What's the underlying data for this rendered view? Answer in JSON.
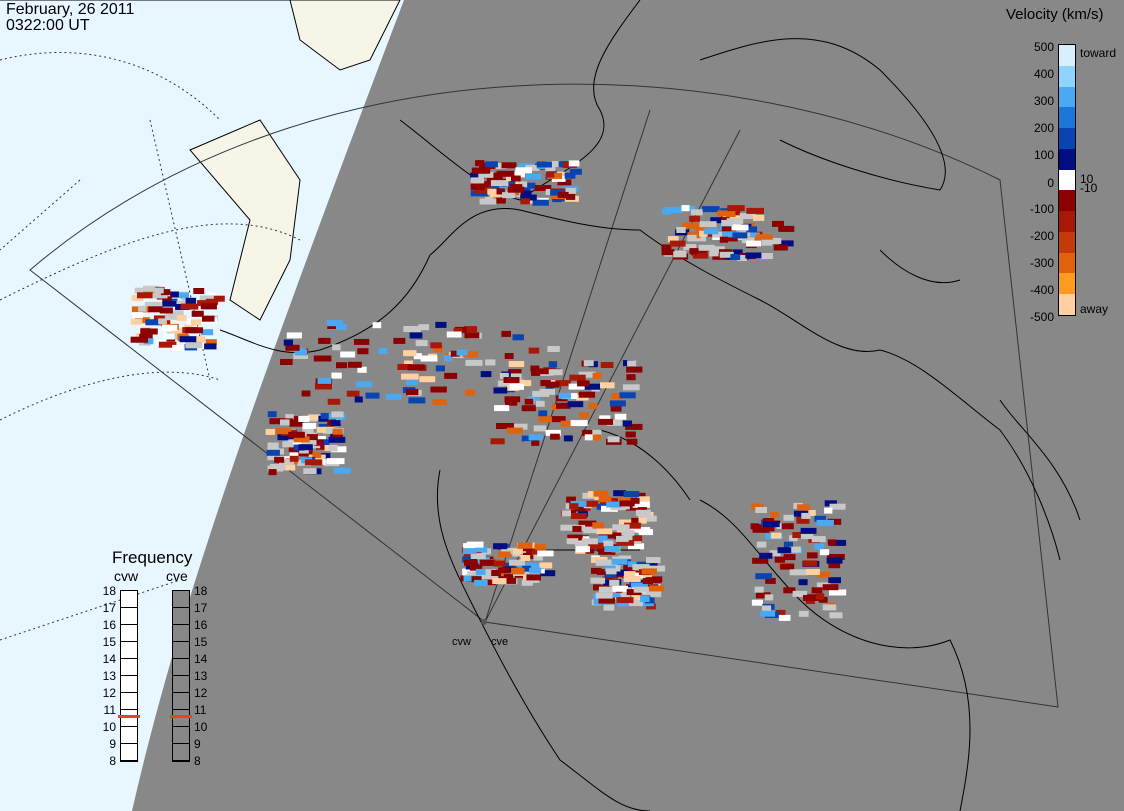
{
  "header": {
    "date": "February, 26 2011",
    "time": "0322:00 UT"
  },
  "colorbar": {
    "title": "Velocity (km/s)",
    "ticks": [
      "500",
      "400",
      "300",
      "200",
      "100",
      "10",
      "0",
      "-10",
      "-100",
      "-200",
      "-300",
      "-400",
      "-500"
    ],
    "toward_label": "toward",
    "away_label": "away",
    "colors": [
      "#d7efff",
      "#8fd3ff",
      "#4aa9f0",
      "#1a78d8",
      "#0a44b0",
      "#000e80",
      "#ffffff",
      "#8b0000",
      "#a81808",
      "#c43a0a",
      "#e0620c",
      "#ff9a20",
      "#ffd0a0"
    ]
  },
  "frequency": {
    "title": "Frequency",
    "radars": [
      "cvw",
      "cve"
    ],
    "levels": [
      "18",
      "17",
      "16",
      "15",
      "14",
      "13",
      "12",
      "11",
      "10",
      "9",
      "8"
    ],
    "selected": {
      "cvw": 11,
      "cve": 11
    },
    "marker_color": "#e04a1a"
  },
  "radar_sites": [
    "cvw",
    "cve"
  ],
  "colors": {
    "night": "#888888",
    "ocean_day": "#e8f6ff",
    "land_day": "#f7f4e8",
    "ground_scatter": "#c8c8c8"
  }
}
